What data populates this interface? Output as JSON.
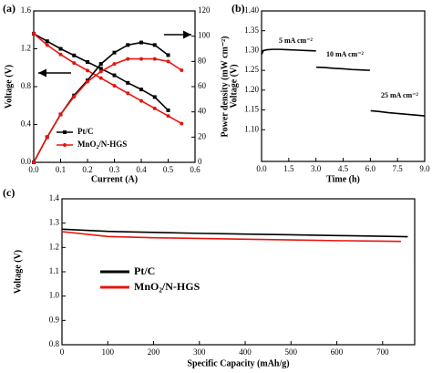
{
  "chart_data": [
    {
      "type": "line",
      "panel_label": "(a)",
      "x_label": "Current (A)",
      "y_label": "Voltage (V)",
      "y2_label": "Power density (mW cm⁻²)",
      "xlim": [
        0,
        0.6
      ],
      "xticks": [
        {
          "value": 0,
          "label": "0.0"
        },
        0.1,
        0.2,
        0.3,
        0.4,
        0.5,
        0.6
      ],
      "ylim": [
        0,
        1.6
      ],
      "yticks": [
        {
          "value": 0,
          "label": "0.0"
        },
        0.4,
        0.8,
        1.2,
        1.6
      ],
      "y2lim": [
        0,
        120
      ],
      "y2ticks": [
        0,
        20,
        40,
        60,
        80,
        100,
        120
      ],
      "series": [
        {
          "name": "Pt/C",
          "color": "#000000",
          "marker": "square",
          "x": [
            0,
            0.05,
            0.1,
            0.15,
            0.2,
            0.25,
            0.3,
            0.35,
            0.4,
            0.45,
            0.5
          ],
          "values": [
            1.36,
            1.28,
            1.2,
            1.13,
            1.06,
            0.99,
            0.92,
            0.84,
            0.77,
            0.69,
            0.55
          ]
        },
        {
          "name": "MnO₂/N-HGS",
          "color": "#e8140f",
          "marker": "circle",
          "x": [
            0,
            0.05,
            0.1,
            0.15,
            0.2,
            0.25,
            0.3,
            0.35,
            0.4,
            0.45,
            0.5,
            0.55
          ],
          "values": [
            1.36,
            1.24,
            1.14,
            1.05,
            0.97,
            0.89,
            0.81,
            0.73,
            0.65,
            0.57,
            0.49,
            0.41
          ]
        },
        {
          "color": "#000000",
          "marker": "square",
          "axis": "y2",
          "x": [
            0,
            0.05,
            0.1,
            0.15,
            0.2,
            0.25,
            0.3,
            0.35,
            0.4,
            0.45,
            0.5
          ],
          "values": [
            0,
            20,
            38,
            53,
            65,
            78,
            87,
            93,
            95,
            93,
            85
          ]
        },
        {
          "color": "#e8140f",
          "marker": "circle",
          "axis": "y2",
          "x": [
            0,
            0.05,
            0.1,
            0.15,
            0.2,
            0.25,
            0.3,
            0.35,
            0.4,
            0.45,
            0.5,
            0.55
          ],
          "values": [
            0,
            20,
            38,
            52,
            64,
            72,
            78,
            82,
            82,
            82,
            80,
            73
          ]
        }
      ]
    },
    {
      "type": "line",
      "panel_label": "(b)",
      "x_label": "Time (h)",
      "y_label": "Voltage (V)",
      "xlim": [
        0,
        9
      ],
      "xticks": [
        {
          "value": 0,
          "label": "0.0"
        },
        1.5,
        {
          "value": 3,
          "label": "3.0"
        },
        4.5,
        {
          "value": 6,
          "label": "6.0"
        },
        7.5,
        {
          "value": 9,
          "label": "9.0"
        }
      ],
      "ylim": [
        1.02,
        1.4
      ],
      "yticks": [
        {
          "value": 1.1,
          "label": "1.10"
        },
        1.15,
        {
          "value": 1.2,
          "label": "1.20"
        },
        1.25,
        {
          "value": 1.3,
          "label": "1.30"
        },
        1.35,
        {
          "value": 1.4,
          "label": "1.40"
        }
      ],
      "annotations": [
        "5 mA cm⁻²",
        "10 mA cm⁻²",
        "25 mA cm⁻²"
      ],
      "color": "#000000",
      "x": [
        0,
        0.1,
        0.3,
        0.6,
        1,
        1.5,
        2,
        2.5,
        3,
        3,
        3.02,
        3.5,
        4,
        4.5,
        5,
        5.5,
        5.98,
        6,
        6.02,
        6.5,
        7,
        7.5,
        8,
        8.5,
        9
      ],
      "values": [
        1.29,
        1.3,
        1.302,
        1.303,
        1.303,
        1.302,
        1.301,
        1.3,
        1.299,
        null,
        1.258,
        1.257,
        1.255,
        1.254,
        1.252,
        1.251,
        1.25,
        null,
        1.148,
        1.146,
        1.143,
        1.141,
        1.139,
        1.137,
        1.135
      ]
    },
    {
      "type": "line",
      "panel_label": "(c)",
      "x_label": "Specific Capacity (mAh/g)",
      "y_label": "Voltage (V)",
      "xlim": [
        0,
        770
      ],
      "xticks": [
        0,
        100,
        200,
        300,
        400,
        500,
        600,
        700
      ],
      "ylim": [
        0.8,
        1.4
      ],
      "yticks": [
        0.8,
        0.9,
        {
          "value": 1,
          "label": "1.0"
        },
        1.1,
        1.2,
        1.3,
        1.4
      ],
      "series": [
        {
          "name": "Pt/C",
          "color": "#000000",
          "x": [
            0,
            100,
            200,
            300,
            400,
            500,
            600,
            700,
            755
          ],
          "values": [
            1.275,
            1.266,
            1.262,
            1.258,
            1.255,
            1.252,
            1.249,
            1.246,
            1.244
          ]
        },
        {
          "name": "MnO₂/N-HGS",
          "color": "#e8140f",
          "x": [
            0,
            100,
            200,
            300,
            400,
            500,
            600,
            700,
            740
          ],
          "values": [
            1.265,
            1.245,
            1.24,
            1.237,
            1.234,
            1.231,
            1.228,
            1.226,
            1.225
          ]
        }
      ]
    }
  ]
}
